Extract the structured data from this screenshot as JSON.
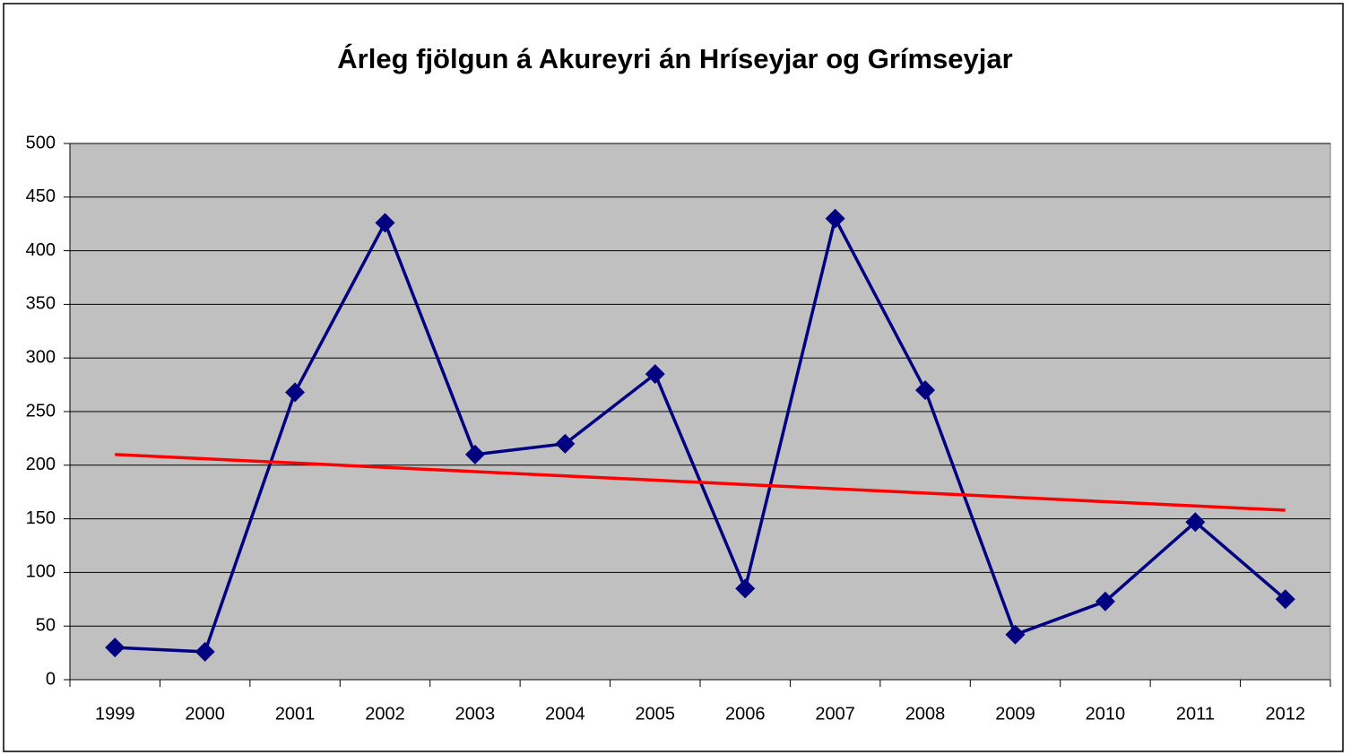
{
  "chart_data": {
    "type": "line",
    "title": "Árleg fjölgun á Akureyri án Hríseyjar og Grímseyjar",
    "categories": [
      "1999",
      "2000",
      "2001",
      "2002",
      "2003",
      "2004",
      "2005",
      "2006",
      "2007",
      "2008",
      "2009",
      "2010",
      "2011",
      "2012"
    ],
    "series": [
      {
        "color": "#000080",
        "marker": "diamond",
        "values": [
          30,
          26,
          268,
          426,
          210,
          220,
          285,
          85,
          430,
          270,
          42,
          73,
          147,
          75
        ]
      },
      {
        "color": "#ff0000",
        "marker": "none",
        "values": [
          210,
          206,
          202,
          198,
          194,
          190,
          186,
          182,
          178,
          174,
          170,
          166,
          162,
          158
        ]
      }
    ],
    "ylim": [
      0,
      500
    ],
    "yticks": [
      0,
      50,
      100,
      150,
      200,
      250,
      300,
      350,
      400,
      450,
      500
    ],
    "grid": true,
    "plot_background": "#c0c0c0"
  }
}
